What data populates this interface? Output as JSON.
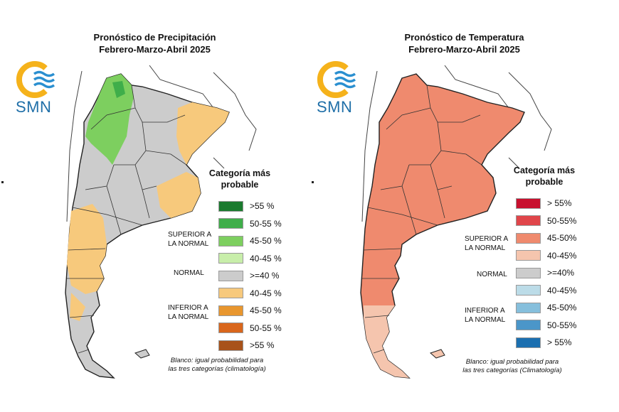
{
  "precipitation": {
    "title_line1": "Pronóstico de Precipitación",
    "title_line2": "Febrero-Marzo-Abril 2025",
    "logo_text": "SMN",
    "legend_title_line1": "Categoría más",
    "legend_title_line2": "probable",
    "groups": {
      "superior_line1": "SUPERIOR A",
      "superior_line2": "LA NORMAL",
      "normal": "NORMAL",
      "inferior_line1": "INFERIOR A",
      "inferior_line2": "LA NORMAL"
    },
    "legend": [
      {
        "label": ">55 %",
        "color": "#1a7a2e"
      },
      {
        "label": "50-55 %",
        "color": "#3fae4a"
      },
      {
        "label": "45-50 %",
        "color": "#7dcf5f"
      },
      {
        "label": "40-45 %",
        "color": "#c8eeaa"
      },
      {
        "label": ">=40 %",
        "color": "#cccccc"
      },
      {
        "label": "40-45 %",
        "color": "#f7c97c"
      },
      {
        "label": "45-50 %",
        "color": "#e8962e"
      },
      {
        "label": "50-55 %",
        "color": "#d9661c"
      },
      {
        "label": ">55 %",
        "color": "#a8521a"
      }
    ],
    "footnote_line1": "Blanco: igual probabilidad para",
    "footnote_line2": "las tres categorías (climatología)"
  },
  "temperature": {
    "title_line1": "Pronóstico de Temperatura",
    "title_line2": "Febrero-Marzo-Abril 2025",
    "logo_text": "SMN",
    "legend_title_line1": "Categoría más",
    "legend_title_line2": "probable",
    "groups": {
      "superior_line1": "SUPERIOR A",
      "superior_line2": "LA NORMAL",
      "normal": "NORMAL",
      "inferior_line1": "INFERIOR A",
      "inferior_line2": "LA NORMAL"
    },
    "legend": [
      {
        "label": "> 55%",
        "color": "#c8102e"
      },
      {
        "label": "50-55%",
        "color": "#e0454a"
      },
      {
        "label": "45-50%",
        "color": "#ef8a6e"
      },
      {
        "label": "40-45%",
        "color": "#f5c5ae"
      },
      {
        "label": ">=40%",
        "color": "#cccccc"
      },
      {
        "label": "40-45%",
        "color": "#bcdce8"
      },
      {
        "label": "45-50%",
        "color": "#86bfdc"
      },
      {
        "label": "50-55%",
        "color": "#4b96c9"
      },
      {
        "label": "> 55%",
        "color": "#1b6fb0"
      }
    ],
    "footnote_line1": "Blanco: igual probabilidad para",
    "footnote_line2": "las tres categorías (Climatología)"
  },
  "map_colors": {
    "precip_normal": "#cccccc",
    "precip_green": "#7dcf5f",
    "precip_orange": "#f7c97c",
    "temp_main": "#ef8a6e",
    "temp_light": "#f5c5ae",
    "land": "#ffffff",
    "border": "#222222"
  }
}
